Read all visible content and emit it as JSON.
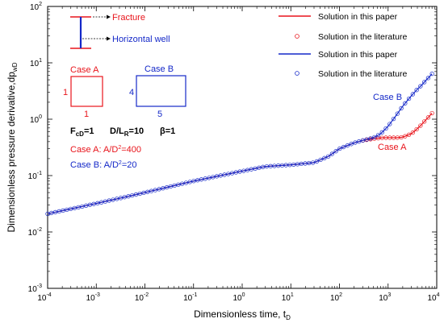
{
  "chart_data": {
    "type": "line",
    "xscale": "log",
    "yscale": "log",
    "xlim": [
      0.0001,
      10000
    ],
    "ylim": [
      0.001,
      100
    ],
    "xlabel_main": "Dimensionless time, t",
    "xlabel_sub": "D",
    "ylabel_main": "Dimensionless pressure derivative,dp",
    "ylabel_sub": "wD",
    "x_ticks": [
      {
        "base": "10",
        "exp": "-4"
      },
      {
        "base": "10",
        "exp": "-3"
      },
      {
        "base": "10",
        "exp": "-2"
      },
      {
        "base": "10",
        "exp": "-1"
      },
      {
        "base": "10",
        "exp": "0"
      },
      {
        "base": "10",
        "exp": "1"
      },
      {
        "base": "10",
        "exp": "2"
      },
      {
        "base": "10",
        "exp": "3"
      },
      {
        "base": "10",
        "exp": "4"
      }
    ],
    "y_ticks": [
      {
        "base": "10",
        "exp": "-3"
      },
      {
        "base": "10",
        "exp": "-2"
      },
      {
        "base": "10",
        "exp": "-1"
      },
      {
        "base": "10",
        "exp": "0"
      },
      {
        "base": "10",
        "exp": "1"
      },
      {
        "base": "10",
        "exp": "2"
      }
    ],
    "common": {
      "x": [
        0.0001,
        0.001,
        0.01,
        0.1,
        1,
        3,
        10,
        30,
        60,
        100,
        200,
        300
      ],
      "y": [
        0.021,
        0.032,
        0.05,
        0.08,
        0.12,
        0.145,
        0.155,
        0.17,
        0.22,
        0.3,
        0.38,
        0.42
      ]
    },
    "series": [
      {
        "name": "Solution in this paper",
        "case": "A",
        "style": "line",
        "color": "#e8141b",
        "x": [
          300,
          500,
          800,
          1000,
          1500,
          2000,
          3000,
          4000,
          5000,
          6000,
          7000,
          8000
        ],
        "y": [
          0.42,
          0.45,
          0.47,
          0.47,
          0.47,
          0.48,
          0.55,
          0.68,
          0.82,
          0.98,
          1.12,
          1.28
        ]
      },
      {
        "name": "Solution in the literature",
        "case": "A",
        "style": "marker",
        "color": "#e8141b",
        "x": [
          300,
          500,
          800,
          1000,
          1500,
          2000,
          3000,
          4000,
          5000,
          6000,
          7000,
          8000
        ],
        "y": [
          0.42,
          0.45,
          0.47,
          0.47,
          0.47,
          0.48,
          0.55,
          0.68,
          0.82,
          0.98,
          1.12,
          1.28
        ]
      },
      {
        "name": "Solution in this paper",
        "case": "B",
        "style": "line",
        "color": "#1428c8",
        "x": [
          300,
          500,
          700,
          1000,
          1500,
          2000,
          3000,
          4000,
          5000,
          6000,
          7000,
          8000
        ],
        "y": [
          0.42,
          0.47,
          0.55,
          0.75,
          1.2,
          1.7,
          2.6,
          3.4,
          4.1,
          4.9,
          5.6,
          6.4
        ]
      },
      {
        "name": "Solution in the literature",
        "case": "B",
        "style": "marker",
        "color": "#1428c8",
        "x": [
          300,
          500,
          700,
          1000,
          1500,
          2000,
          3000,
          4000,
          5000,
          6000,
          7000,
          8000
        ],
        "y": [
          0.42,
          0.47,
          0.55,
          0.75,
          1.2,
          1.7,
          2.6,
          3.4,
          4.1,
          4.9,
          5.6,
          6.4
        ]
      }
    ],
    "legend_placement": "top-right",
    "curve_labels": [
      {
        "text": "Case B",
        "color": "#1428c8"
      },
      {
        "text": "Case A",
        "color": "#e8141b"
      }
    ],
    "inset": {
      "fracture_label": "Fracture",
      "well_label": "Horizontal well",
      "case_a": {
        "title": "Case A",
        "side": "1",
        "bottom": "1",
        "color": "#e8141b"
      },
      "case_b": {
        "title": "Case B",
        "side": "4",
        "bottom": "5",
        "color": "#1428c8"
      }
    },
    "params": {
      "fcd": {
        "main": "F",
        "sub": "cD",
        "val": "=1"
      },
      "dlr": {
        "main": "D/L",
        "sub": "R",
        "val": "=10"
      },
      "beta": {
        "text": "β=1"
      }
    },
    "case_notes": [
      {
        "pre": "Case A: A/D",
        "sup": "2",
        "post": "=400",
        "color": "#e8141b"
      },
      {
        "pre": "Case B: A/D",
        "sup": "2",
        "post": "=20",
        "color": "#1428c8"
      }
    ]
  }
}
